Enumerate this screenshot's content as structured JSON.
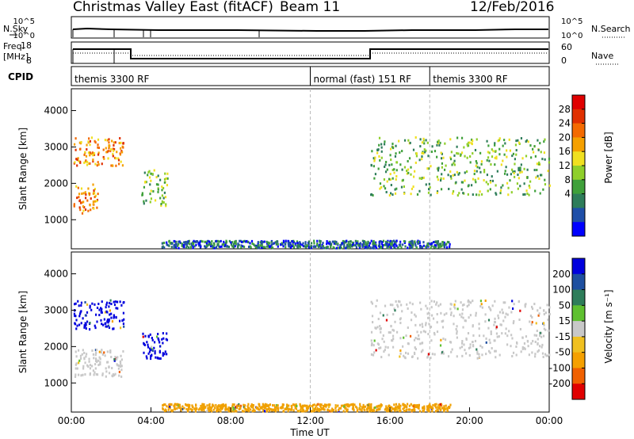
{
  "header": {
    "title": "Christmas Valley East (fitACF)",
    "beam": "Beam 11",
    "date": "12/Feb/2016"
  },
  "status_panels": {
    "nsky_label": "N.Sky",
    "nsearch_label": "N.Search",
    "freq_label": "Freq.",
    "freq_unit": "[MHz]",
    "nave_label": "Nave",
    "cpid_label": "CPID",
    "nsky_ticks": [
      "10^5",
      "10^0"
    ],
    "nsearch_ticks": [
      "10^5",
      "10^0"
    ],
    "freq_ticks": [
      "18",
      "8"
    ],
    "nave_ticks": [
      "60",
      "0"
    ]
  },
  "cpid_segments": [
    {
      "start_hour": 0.0,
      "label": "themis 3300 RF"
    },
    {
      "start_hour": 12.0,
      "label": "normal (fast) 151 RF"
    },
    {
      "start_hour": 18.0,
      "label": "themis 3300 RF"
    }
  ],
  "chart_data": [
    {
      "type": "heatmap",
      "name": "power",
      "ylabel": "Slant Range [km]",
      "x_range_hours": [
        0,
        24
      ],
      "ylim": [
        200,
        4600
      ],
      "yticks": [
        "1000",
        "2000",
        "3000",
        "4000"
      ],
      "colorbar_label": "Power [dB]",
      "colorbar_ticks": [
        "4",
        "8",
        "12",
        "16",
        "20",
        "24",
        "28"
      ],
      "colors": [
        "#0000ff",
        "#1f4fa8",
        "#2e7d5a",
        "#3fa03a",
        "#8fcf2a",
        "#f0e020",
        "#f5a000",
        "#f46a00",
        "#e03000",
        "#e00000"
      ],
      "echo_bands": [
        {
          "start_hour": 0.1,
          "end_hour": 1.3,
          "range_start_km": 1200,
          "range_end_km": 2000,
          "level": "high"
        },
        {
          "start_hour": 0.1,
          "end_hour": 2.6,
          "range_start_km": 2500,
          "range_end_km": 3300,
          "level": "high"
        },
        {
          "start_hour": 3.5,
          "end_hour": 4.8,
          "range_start_km": 1400,
          "range_end_km": 2400,
          "level": "medium"
        },
        {
          "start_hour": 15.0,
          "end_hour": 24.0,
          "range_start_km": 1700,
          "range_end_km": 3300,
          "level": "medium"
        },
        {
          "start_hour": 4.5,
          "end_hour": 19.0,
          "range_start_km": 250,
          "range_end_km": 450,
          "level": "low"
        }
      ]
    },
    {
      "type": "heatmap",
      "name": "velocity",
      "ylabel": "Slant Range [km]",
      "x_range_hours": [
        0,
        24
      ],
      "ylim": [
        200,
        4600
      ],
      "yticks": [
        "1000",
        "2000",
        "3000",
        "4000"
      ],
      "colorbar_label": "Velocity [m s⁻¹]",
      "colorbar_ticks": [
        "200",
        "100",
        "50",
        "15",
        "-15",
        "-50",
        "-100",
        "-200"
      ],
      "colors": [
        "#0000dd",
        "#1e4fa0",
        "#2e7d5a",
        "#5fc030",
        "#c8c8c8",
        "#f0c020",
        "#f5a000",
        "#f06000",
        "#e00000"
      ],
      "echo_bands": [
        {
          "start_hour": 0.1,
          "end_hour": 2.6,
          "range_start_km": 2500,
          "range_end_km": 3300,
          "velocity_ms": 200
        },
        {
          "start_hour": 3.5,
          "end_hour": 4.8,
          "range_start_km": 1700,
          "range_end_km": 2400,
          "velocity_ms": 200
        },
        {
          "start_hour": 0.1,
          "end_hour": 2.6,
          "range_start_km": 1200,
          "range_end_km": 2000,
          "velocity_ms": 0
        },
        {
          "start_hour": 15.0,
          "end_hour": 24.0,
          "range_start_km": 1700,
          "range_end_km": 3300,
          "velocity_ms": 0
        },
        {
          "start_hour": 4.5,
          "end_hour": 19.0,
          "range_start_km": 250,
          "range_end_km": 450,
          "velocity_ms": -50
        }
      ]
    }
  ],
  "x_axis": {
    "label": "Time UT",
    "ticks": [
      "00:00",
      "04:00",
      "08:00",
      "12:00",
      "16:00",
      "20:00",
      "00:00"
    ]
  }
}
